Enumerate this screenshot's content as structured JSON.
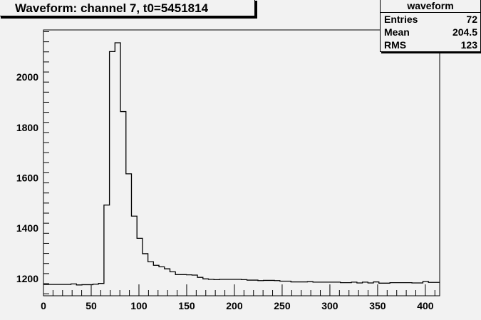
{
  "title": "Waveform: channel 7, t0=5451814",
  "stats": {
    "name": "waveform",
    "rows": [
      {
        "label": "Entries",
        "value": "72"
      },
      {
        "label": "Mean",
        "value": "204.5"
      },
      {
        "label": "RMS",
        "value": "123"
      }
    ]
  },
  "chart_data": {
    "type": "histogram",
    "title": "Waveform: channel 7, t0=5451814",
    "xlabel": "",
    "ylabel": "",
    "xlim": [
      0,
      415
    ],
    "ylim": [
      1132,
      2187
    ],
    "bin_width": 5.76,
    "x_ticks": [
      0,
      50,
      100,
      150,
      200,
      250,
      300,
      350,
      400
    ],
    "y_ticks": [
      1200,
      1400,
      1600,
      1800,
      2000
    ],
    "grid": false,
    "line_color": "#000000",
    "background_color": "#f2f2f2",
    "values": [
      1177,
      1177,
      1177,
      1177,
      1177,
      1179,
      1175,
      1176,
      1176,
      1178,
      1181,
      1492,
      2101,
      2136,
      1863,
      1616,
      1448,
      1360,
      1299,
      1267,
      1253,
      1247,
      1239,
      1227,
      1216,
      1216,
      1215,
      1214,
      1205,
      1199,
      1197,
      1196,
      1197,
      1197,
      1197,
      1197,
      1196,
      1194,
      1194,
      1192,
      1193,
      1193,
      1192,
      1190,
      1190,
      1187,
      1187,
      1187,
      1188,
      1186,
      1186,
      1186,
      1186,
      1186,
      1184,
      1184,
      1186,
      1183,
      1186,
      1183,
      1187,
      1182,
      1182,
      1184,
      1184,
      1184,
      1184,
      1183,
      1183,
      1189,
      1185,
      1185
    ]
  }
}
